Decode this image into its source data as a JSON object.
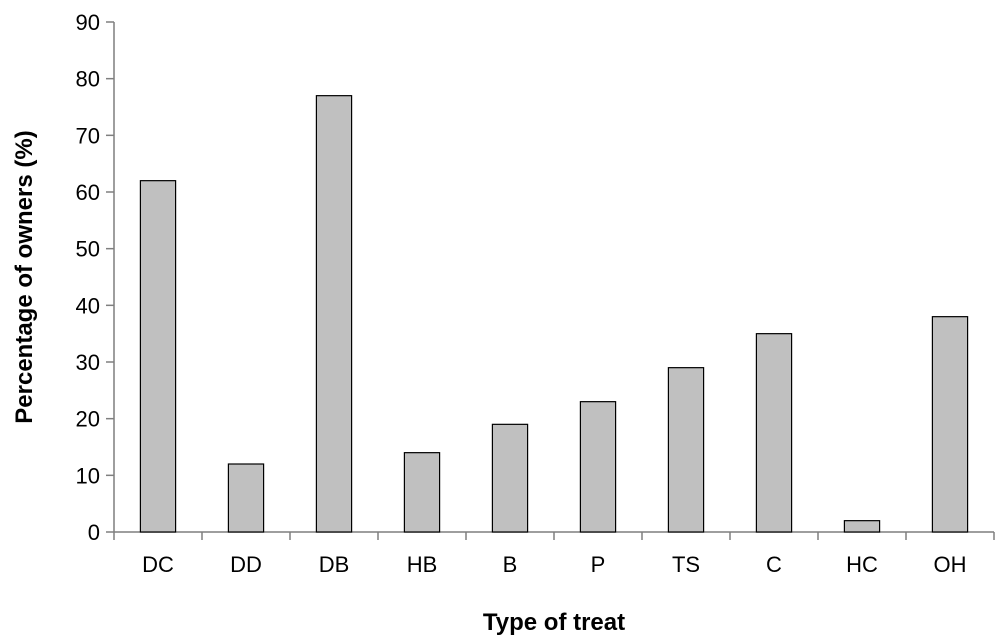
{
  "chart_data": {
    "type": "bar",
    "title": "",
    "xlabel": "Type of treat",
    "ylabel": "Percentage of owners (%)",
    "categories": [
      "DC",
      "DD",
      "DB",
      "HB",
      "B",
      "P",
      "TS",
      "C",
      "HC",
      "OH"
    ],
    "values": [
      62,
      12,
      77,
      14,
      19,
      23,
      29,
      35,
      2,
      38
    ],
    "ylim": [
      0,
      90
    ],
    "yticks": [
      "0",
      "10",
      "20",
      "30",
      "40",
      "50",
      "60",
      "70",
      "80",
      "90"
    ],
    "grid": false,
    "legend": "none",
    "bar_color": "#c0c0c0"
  }
}
